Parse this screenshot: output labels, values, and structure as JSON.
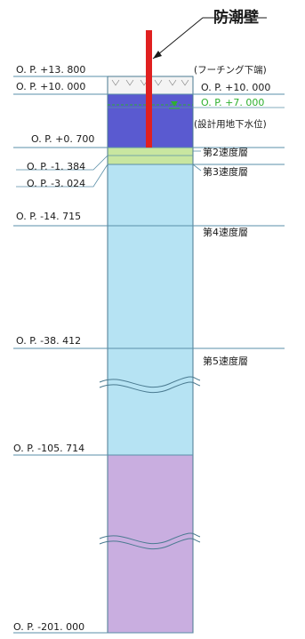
{
  "diagram": {
    "title": "防潮壁",
    "elevations": {
      "top_wall": "O. P. +13. 800",
      "ground": "O. P. +10. 000",
      "gw": "O. P. +0. 700",
      "layer2_bottom": "O. P. -1. 384",
      "layer3_bottom": "O. P. -3. 024",
      "layer4_top": "O. P. -14. 715",
      "layer5_top": "O. P. -38. 412",
      "rock_top": "O. P. -105. 714",
      "base": "O. P. -201. 000"
    },
    "right_labels": {
      "footing": "(フーチング下端)",
      "footing_level": "O. P. +10. 000",
      "design_gw_level": "O. P. +7. 000",
      "design_gw": "(設計用地下水位)"
    },
    "layers": {
      "layer2": "第2速度層",
      "layer3": "第3速度層",
      "layer4": "第4速度層",
      "layer5": "第5速度層"
    },
    "colors": {
      "wall": "#e02020",
      "fill_layer": "#5a5ad0",
      "thin_layer": "#c8e6a0",
      "soil": "#b6e3f3",
      "rock": "#c9aee0",
      "gw_marker": "#2fb02f",
      "line": "#5a8fa8"
    }
  }
}
